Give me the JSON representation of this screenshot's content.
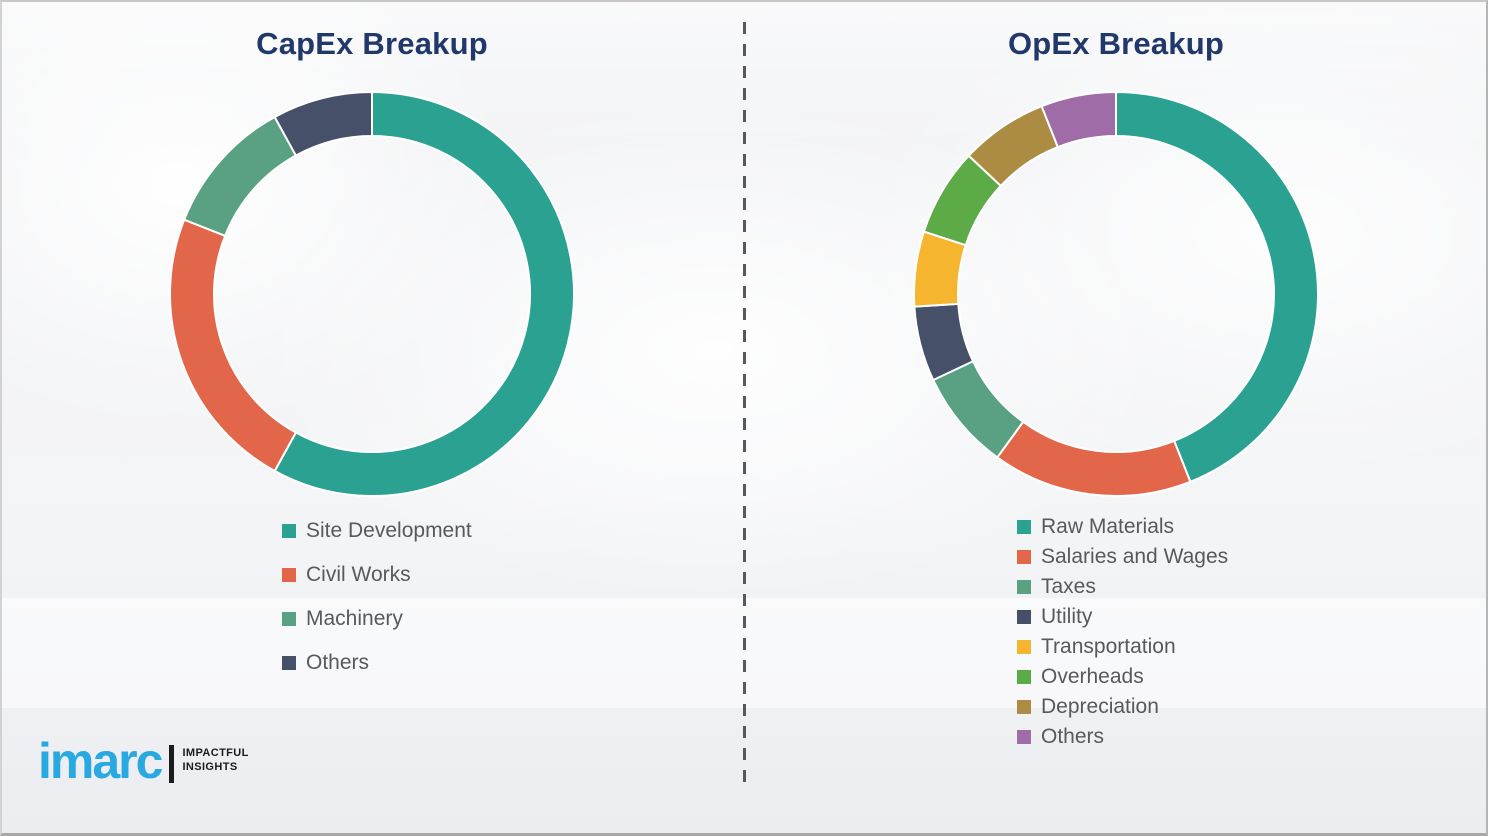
{
  "chart_data": [
    {
      "type": "pie",
      "donut": true,
      "title": "CapEx Breakup",
      "start_angle_deg": 0,
      "direction": "clockwise",
      "legend_position": "below",
      "data_labels_shown": false,
      "series": [
        {
          "name": "Site Development",
          "value": 58,
          "color": "#2aa191"
        },
        {
          "name": "Civil Works",
          "value": 23,
          "color": "#e2664a"
        },
        {
          "name": "Machinery",
          "value": 11,
          "color": "#5aa183"
        },
        {
          "name": "Others",
          "value": 8,
          "color": "#475069"
        }
      ]
    },
    {
      "type": "pie",
      "donut": true,
      "title": "OpEx Breakup",
      "start_angle_deg": 0,
      "direction": "clockwise",
      "legend_position": "below",
      "data_labels_shown": false,
      "series": [
        {
          "name": "Raw Materials",
          "value": 44,
          "color": "#2aa191"
        },
        {
          "name": "Salaries and Wages",
          "value": 16,
          "color": "#e2664a"
        },
        {
          "name": "Taxes",
          "value": 8,
          "color": "#5aa183"
        },
        {
          "name": "Utility",
          "value": 6,
          "color": "#475069"
        },
        {
          "name": "Transportation",
          "value": 6,
          "color": "#f5b52e"
        },
        {
          "name": "Overheads",
          "value": 7,
          "color": "#5cab47"
        },
        {
          "name": "Depreciation",
          "value": 7,
          "color": "#ab8c42"
        },
        {
          "name": "Others",
          "value": 6,
          "color": "#a06ca8"
        }
      ]
    }
  ],
  "titles": {
    "title_color": "#21386b"
  },
  "logo": {
    "brand": "imarc",
    "brand_color": "#29a9e1",
    "tagline": [
      "IMPACTFUL",
      "INSIGHTS"
    ]
  }
}
